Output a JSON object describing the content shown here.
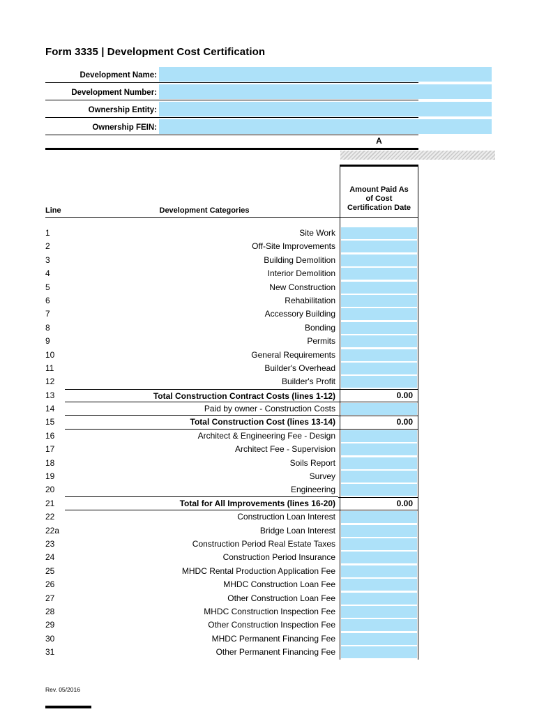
{
  "title": "Form 3335 | Development Cost Certification",
  "fields": [
    {
      "label": "Development Name:",
      "value": ""
    },
    {
      "label": "Development Number:",
      "value": ""
    },
    {
      "label": "Ownership Entity:",
      "value": ""
    },
    {
      "label": "Ownership FEIN:",
      "value": ""
    }
  ],
  "column_letter": "A",
  "table": {
    "line_header": "Line",
    "categories_header": "Development Categories",
    "amount_header_lines": [
      "Amount Paid As",
      "of Cost",
      "Certification Date"
    ],
    "rows": [
      {
        "line": "1",
        "category": "Site Work",
        "type": "input",
        "value": ""
      },
      {
        "line": "2",
        "category": "Off-Site Improvements",
        "type": "input",
        "value": ""
      },
      {
        "line": "3",
        "category": "Building Demolition",
        "type": "input",
        "value": ""
      },
      {
        "line": "4",
        "category": "Interior Demolition",
        "type": "input",
        "value": ""
      },
      {
        "line": "5",
        "category": "New Construction",
        "type": "input",
        "value": ""
      },
      {
        "line": "6",
        "category": "Rehabilitation",
        "type": "input",
        "value": ""
      },
      {
        "line": "7",
        "category": "Accessory Building",
        "type": "input",
        "value": ""
      },
      {
        "line": "8",
        "category": "Bonding",
        "type": "input",
        "value": ""
      },
      {
        "line": "9",
        "category": "Permits",
        "type": "input",
        "value": ""
      },
      {
        "line": "10",
        "category": "General Requirements",
        "type": "input",
        "value": ""
      },
      {
        "line": "11",
        "category": "Builder's Overhead",
        "type": "input",
        "value": ""
      },
      {
        "line": "12",
        "category": "Builder's Profit",
        "type": "input",
        "value": ""
      },
      {
        "line": "13",
        "category": "Total Construction Contract Costs (lines 1-12)",
        "type": "total",
        "value": "0.00",
        "rule_above": true,
        "rule_below": true
      },
      {
        "line": "14",
        "category": "Paid by owner - Construction Costs",
        "type": "input",
        "value": "",
        "rule_below": true
      },
      {
        "line": "15",
        "category": "Total Construction Cost (lines 13-14)",
        "type": "total",
        "value": "0.00",
        "rule_below": true
      },
      {
        "line": "16",
        "category": "Architect & Engineering Fee - Design",
        "type": "input",
        "value": ""
      },
      {
        "line": "17",
        "category": "Architect Fee - Supervision",
        "type": "input",
        "value": ""
      },
      {
        "line": "18",
        "category": "Soils Report",
        "type": "input",
        "value": ""
      },
      {
        "line": "19",
        "category": "Survey",
        "type": "input",
        "value": ""
      },
      {
        "line": "20",
        "category": "Engineering",
        "type": "input",
        "value": "",
        "rule_below": true
      },
      {
        "line": "21",
        "category": "Total for All Improvements (lines 16-20)",
        "type": "total",
        "value": "0.00",
        "rule_below": true
      },
      {
        "line": "22",
        "category": "Construction Loan Interest",
        "type": "input",
        "value": ""
      },
      {
        "line": "22a",
        "category": "Bridge Loan Interest",
        "type": "input",
        "value": ""
      },
      {
        "line": "23",
        "category": "Construction Period Real Estate Taxes",
        "type": "input",
        "value": ""
      },
      {
        "line": "24",
        "category": "Construction Period Insurance",
        "type": "input",
        "value": ""
      },
      {
        "line": "25",
        "category": "MHDC Rental Production Application Fee",
        "type": "input",
        "value": ""
      },
      {
        "line": "26",
        "category": "MHDC Construction Loan Fee",
        "type": "input",
        "value": ""
      },
      {
        "line": "27",
        "category": "Other Construction Loan Fee",
        "type": "input",
        "value": ""
      },
      {
        "line": "28",
        "category": "MHDC Construction Inspection Fee",
        "type": "input",
        "value": ""
      },
      {
        "line": "29",
        "category": "Other Construction Inspection Fee",
        "type": "input",
        "value": ""
      },
      {
        "line": "30",
        "category": "MHDC Permanent Financing Fee",
        "type": "input",
        "value": ""
      },
      {
        "line": "31",
        "category": "Other Permanent Financing Fee",
        "type": "input",
        "value": ""
      }
    ]
  },
  "footer": "Rev. 05/2016",
  "colors": {
    "input_fill": "#ADE1F9"
  }
}
